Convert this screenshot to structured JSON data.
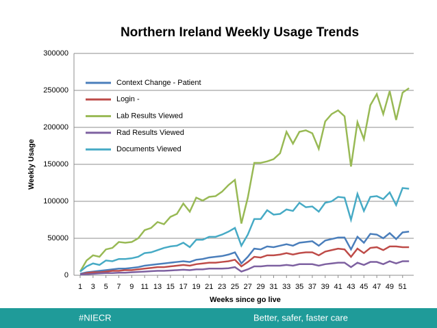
{
  "chart_data": {
    "type": "line",
    "title": "Northern Ireland Weekly Usage Trends",
    "x_label": "Weeks since go live",
    "y_label": "Weekly Usage",
    "x": [
      1,
      2,
      3,
      4,
      5,
      6,
      7,
      8,
      9,
      10,
      11,
      12,
      13,
      14,
      15,
      16,
      17,
      18,
      19,
      20,
      21,
      22,
      23,
      24,
      25,
      26,
      27,
      28,
      29,
      30,
      31,
      32,
      33,
      34,
      35,
      36,
      37,
      38,
      39,
      40,
      41,
      42,
      43,
      44,
      45,
      46,
      47,
      48,
      49,
      50,
      51,
      52
    ],
    "xlim": [
      1,
      52.3
    ],
    "xticks": [
      1,
      3,
      5,
      7,
      9,
      11,
      13,
      15,
      17,
      19,
      21,
      23,
      25,
      27,
      29,
      31,
      33,
      35,
      37,
      39,
      41,
      43,
      45,
      47,
      49,
      51
    ],
    "ylim": [
      0,
      300000
    ],
    "yticks": [
      0,
      50000,
      100000,
      150000,
      200000,
      250000,
      300000
    ],
    "grid": true,
    "legend": "upper left",
    "series": [
      {
        "name": "Context Change - Patient",
        "color": "#4a7ebb",
        "values": [
          2000,
          4000,
          5000,
          6000,
          7000,
          8000,
          9000,
          9000,
          10000,
          11000,
          13000,
          14000,
          15000,
          16000,
          17000,
          18000,
          19000,
          18000,
          21000,
          22000,
          24000,
          25000,
          26000,
          28000,
          31000,
          16000,
          25000,
          36000,
          35000,
          39000,
          38000,
          40000,
          42000,
          40000,
          44000,
          45000,
          46000,
          40000,
          47000,
          49000,
          51000,
          51000,
          35000,
          52000,
          44000,
          56000,
          55000,
          50000,
          57000,
          49000,
          58000,
          59000
        ]
      },
      {
        "name": "Login -",
        "color": "#be4b48",
        "values": [
          1000,
          3000,
          4000,
          4000,
          5000,
          6000,
          6000,
          7000,
          7000,
          8000,
          9000,
          10000,
          11000,
          11000,
          12000,
          13000,
          14000,
          13000,
          15000,
          16000,
          17000,
          17000,
          18000,
          19000,
          21000,
          12000,
          18000,
          25000,
          24000,
          27000,
          27000,
          28000,
          30000,
          28000,
          30000,
          31000,
          31000,
          27000,
          32000,
          34000,
          36000,
          35000,
          25000,
          36000,
          30000,
          37000,
          38000,
          34000,
          39000,
          39000,
          38000,
          38000
        ]
      },
      {
        "name": "Lab Results Viewed",
        "color": "#98b954",
        "values": [
          5000,
          20000,
          27000,
          25000,
          35000,
          37000,
          45000,
          44000,
          45000,
          50000,
          61000,
          64000,
          72000,
          69000,
          79000,
          83000,
          97000,
          86000,
          105000,
          101000,
          106000,
          107000,
          113000,
          122000,
          129000,
          70000,
          105000,
          152000,
          152000,
          154000,
          157000,
          165000,
          194000,
          178000,
          194000,
          196000,
          192000,
          171000,
          208000,
          218000,
          223000,
          215000,
          147000,
          207000,
          184000,
          230000,
          245000,
          218000,
          249000,
          210000,
          247000,
          253000
        ]
      },
      {
        "name": "Rad Results Viewed",
        "color": "#7d60a0",
        "values": [
          1000,
          1500,
          2000,
          2500,
          3000,
          3000,
          3500,
          3500,
          4000,
          4500,
          5000,
          5500,
          6000,
          6000,
          6500,
          7000,
          7500,
          7000,
          8000,
          8000,
          9000,
          9000,
          9000,
          9500,
          11000,
          5000,
          8000,
          12000,
          12000,
          13000,
          13000,
          13000,
          14000,
          13000,
          15000,
          15000,
          15000,
          13000,
          15000,
          16000,
          17000,
          17000,
          11000,
          17000,
          14000,
          18000,
          18000,
          15000,
          19000,
          16000,
          19000,
          19000
        ]
      },
      {
        "name": "Documents Viewed",
        "color": "#46aac5",
        "values": [
          5000,
          12000,
          16000,
          14000,
          20000,
          19000,
          22000,
          22000,
          23000,
          25000,
          30000,
          31000,
          34000,
          37000,
          39000,
          40000,
          44000,
          38000,
          48000,
          48000,
          52000,
          52000,
          55000,
          59000,
          64000,
          40000,
          55000,
          76000,
          76000,
          88000,
          82000,
          83000,
          89000,
          87000,
          98000,
          92000,
          93000,
          86000,
          98000,
          100000,
          106000,
          105000,
          75000,
          110000,
          87000,
          106000,
          107000,
          103000,
          112000,
          95000,
          118000,
          117000
        ]
      }
    ]
  },
  "footer": {
    "left": "#NIECR",
    "right": "Better, safer, faster care"
  }
}
